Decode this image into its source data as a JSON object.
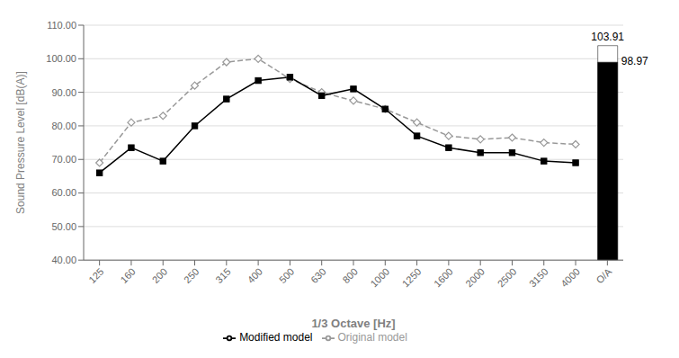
{
  "chart_data": {
    "type": "line",
    "xlabel": "1/3 Octave [Hz]",
    "ylabel": "Sound Pressure Level [dB(A)]",
    "categories": [
      "125",
      "160",
      "200",
      "250",
      "315",
      "400",
      "500",
      "630",
      "800",
      "1000",
      "1250",
      "1600",
      "2000",
      "2500",
      "3150",
      "4000",
      "O/A"
    ],
    "ylim": [
      40.0,
      110.0
    ],
    "yticks": [
      {
        "value": 40.0,
        "label": "40.00"
      },
      {
        "value": 50.0,
        "label": "50.00"
      },
      {
        "value": 60.0,
        "label": "60.00"
      },
      {
        "value": 70.0,
        "label": "70.00"
      },
      {
        "value": 80.0,
        "label": "80.00"
      },
      {
        "value": 90.0,
        "label": "90.00"
      },
      {
        "value": 100.0,
        "label": "100.00"
      },
      {
        "value": 110.0,
        "label": "110.00"
      }
    ],
    "grid": true,
    "legend": "bottom",
    "series": [
      {
        "name": "Original model",
        "type": "line",
        "color": "#999999",
        "line_style": "dashed",
        "marker": "diamond",
        "values": [
          69.0,
          81.0,
          83.0,
          92.0,
          99.0,
          100.0,
          94.0,
          90.0,
          87.5,
          85.0,
          81.0,
          77.0,
          76.0,
          76.5,
          75.0,
          74.5,
          null
        ]
      },
      {
        "name": "Modified model",
        "type": "line",
        "color": "#000000",
        "line_style": "solid",
        "marker": "square",
        "values": [
          66.0,
          73.5,
          69.5,
          80.0,
          88.0,
          93.5,
          94.5,
          89.0,
          91.0,
          85.0,
          77.0,
          73.5,
          72.0,
          72.0,
          69.5,
          69.0,
          null
        ]
      },
      {
        "type": "bar",
        "color": "#ffffff",
        "data_labels": true,
        "values": [
          null,
          null,
          null,
          null,
          null,
          null,
          null,
          null,
          null,
          null,
          null,
          null,
          null,
          null,
          null,
          null,
          103.91
        ]
      },
      {
        "type": "bar",
        "color": "#000000",
        "data_labels": true,
        "values": [
          null,
          null,
          null,
          null,
          null,
          null,
          null,
          null,
          null,
          null,
          null,
          null,
          null,
          null,
          null,
          null,
          98.97
        ]
      }
    ]
  }
}
